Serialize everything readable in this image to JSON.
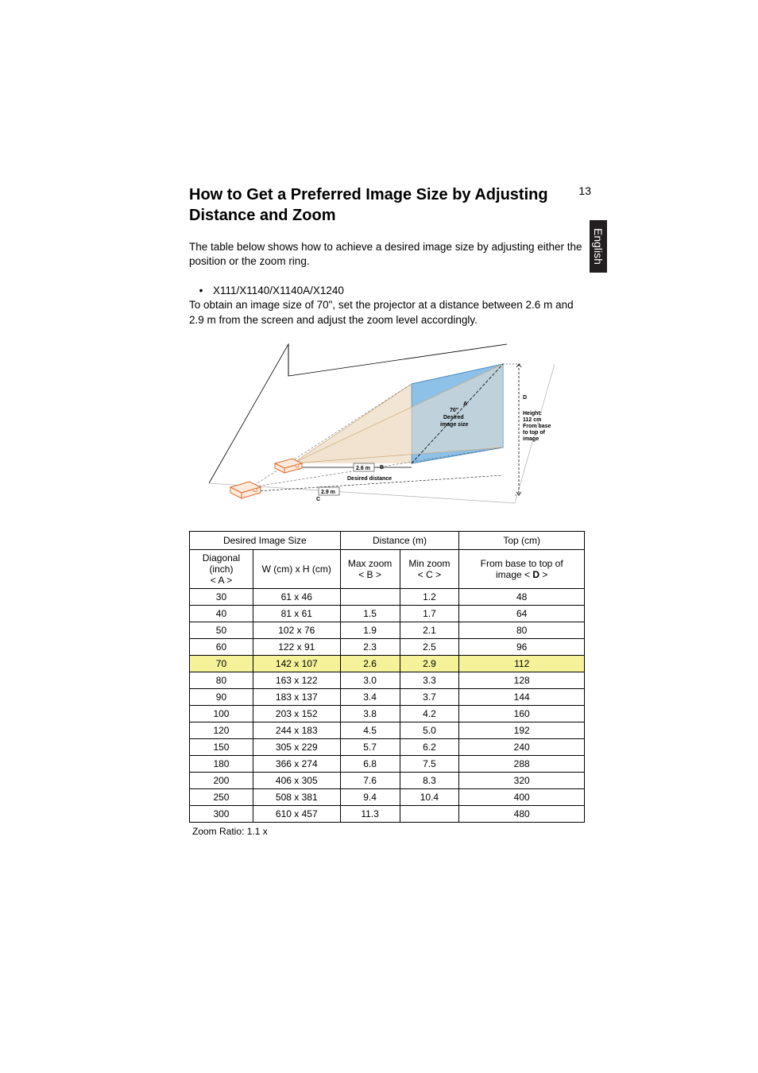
{
  "page_number": "13",
  "language_tab": "English",
  "heading": "How to Get a Preferred Image Size by Adjusting Distance and Zoom",
  "intro": "The table below shows how to achieve a desired image size by adjusting either the position or the zoom ring.",
  "models": "X111/X1140/X1140A/X1240",
  "example": "To obtain an image size of 70\", set the projector at a distance between 2.6 m and 2.9 m from the screen and adjust the zoom level accordingly.",
  "diagram": {
    "label_A": "A",
    "label_B": "B",
    "label_C": "C",
    "label_D": "D",
    "screen_title1": "70\"",
    "screen_title2": "Desired",
    "screen_title3": "image size",
    "height_line1": "Height:",
    "height_line2": "112 cm",
    "height_line3": "From base",
    "height_line4": "to top of",
    "height_line5": "image",
    "dist_b": "2.6 m",
    "dist_c": "2.9 m",
    "desired_distance": "Desired distance",
    "colors": {
      "screen_fill": "#7fb7e3",
      "screen_stroke": "#3a7fb5",
      "floor_stroke": "#9aa0a6",
      "max_beam": "#e2c8a8",
      "min_beam": "#f6e7d2",
      "projector_stroke": "#e06a2c",
      "projector_fill": "#fde7d9",
      "dash": "#000000"
    }
  },
  "table": {
    "group_headers": [
      "Desired Image Size",
      "Distance (m)",
      "Top (cm)"
    ],
    "sub_headers": {
      "a1": "Diagonal (inch)",
      "a2": "< A >",
      "w": "W (cm) x H (cm)",
      "b1": "Max zoom",
      "b2": "< B >",
      "c1": "Min zoom",
      "c2": "< C >",
      "d1": "From base to top of",
      "d2": "image < D >"
    },
    "rows": [
      {
        "a": "30",
        "w": "61 x 46",
        "b": "",
        "c": "1.2",
        "d": "48",
        "hl": false
      },
      {
        "a": "40",
        "w": "81 x 61",
        "b": "1.5",
        "c": "1.7",
        "d": "64",
        "hl": false
      },
      {
        "a": "50",
        "w": "102 x 76",
        "b": "1.9",
        "c": "2.1",
        "d": "80",
        "hl": false
      },
      {
        "a": "60",
        "w": "122 x 91",
        "b": "2.3",
        "c": "2.5",
        "d": "96",
        "hl": false
      },
      {
        "a": "70",
        "w": "142 x 107",
        "b": "2.6",
        "c": "2.9",
        "d": "112",
        "hl": true
      },
      {
        "a": "80",
        "w": "163 x 122",
        "b": "3.0",
        "c": "3.3",
        "d": "128",
        "hl": false
      },
      {
        "a": "90",
        "w": "183 x 137",
        "b": "3.4",
        "c": "3.7",
        "d": "144",
        "hl": false
      },
      {
        "a": "100",
        "w": "203 x 152",
        "b": "3.8",
        "c": "4.2",
        "d": "160",
        "hl": false
      },
      {
        "a": "120",
        "w": "244 x 183",
        "b": "4.5",
        "c": "5.0",
        "d": "192",
        "hl": false
      },
      {
        "a": "150",
        "w": "305 x 229",
        "b": "5.7",
        "c": "6.2",
        "d": "240",
        "hl": false
      },
      {
        "a": "180",
        "w": "366 x 274",
        "b": "6.8",
        "c": "7.5",
        "d": "288",
        "hl": false
      },
      {
        "a": "200",
        "w": "406 x 305",
        "b": "7.6",
        "c": "8.3",
        "d": "320",
        "hl": false
      },
      {
        "a": "250",
        "w": "508 x 381",
        "b": "9.4",
        "c": "10.4",
        "d": "400",
        "hl": false
      },
      {
        "a": "300",
        "w": "610 x 457",
        "b": "11.3",
        "c": "",
        "d": "480",
        "hl": false
      }
    ]
  },
  "zoom_note": "Zoom Ratio: 1.1 x"
}
